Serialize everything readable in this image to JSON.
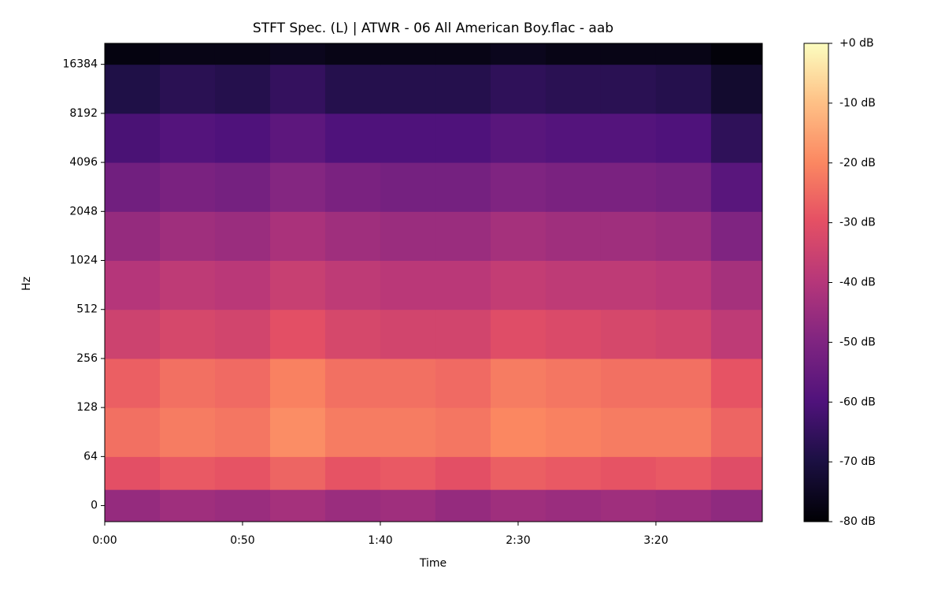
{
  "chart_data": {
    "type": "heatmap",
    "title": "STFT Spec. (L) | ATWR - 06 All American Boy.flac - aab",
    "xlabel": "Time",
    "ylabel": "Hz",
    "yscale": "symlog",
    "linthresh": 64,
    "colormap": "magma",
    "clim": [
      -80,
      0
    ],
    "xlim": [
      0,
      238.6
    ],
    "ylim": [
      -21,
      22050
    ],
    "xticks": [
      {
        "value": 0,
        "label": "0:00"
      },
      {
        "value": 50,
        "label": "0:50"
      },
      {
        "value": 100,
        "label": "1:40"
      },
      {
        "value": 150,
        "label": "2:30"
      },
      {
        "value": 200,
        "label": "3:20"
      }
    ],
    "yticks": [
      0,
      64,
      128,
      256,
      512,
      1024,
      2048,
      4096,
      8192,
      16384
    ],
    "cticks": [
      {
        "value": 0,
        "label": "+0 dB"
      },
      {
        "value": -10,
        "label": "-10 dB"
      },
      {
        "value": -20,
        "label": "-20 dB"
      },
      {
        "value": -30,
        "label": "-30 dB"
      },
      {
        "value": -40,
        "label": "-40 dB"
      },
      {
        "value": -50,
        "label": "-50 dB"
      },
      {
        "value": -60,
        "label": "-60 dB"
      },
      {
        "value": -70,
        "label": "-70 dB"
      },
      {
        "value": -80,
        "label": "-80 dB"
      }
    ],
    "x_edges": [
      0,
      20,
      40,
      60,
      80,
      100,
      120,
      140,
      160,
      180,
      200,
      220,
      238.6
    ],
    "y_edges": [
      -21,
      21,
      64,
      128,
      256,
      512,
      1024,
      2048,
      4096,
      8192,
      16384,
      22050
    ],
    "values": [
      [
        -46,
        -44,
        -45,
        -43,
        -45,
        -44,
        -46,
        -44,
        -45,
        -44,
        -45,
        -47
      ],
      [
        -30,
        -28,
        -29,
        -26,
        -29,
        -28,
        -30,
        -27,
        -28,
        -29,
        -28,
        -31
      ],
      [
        -24,
        -22,
        -23,
        -19,
        -22,
        -22,
        -23,
        -20,
        -21,
        -22,
        -22,
        -26
      ],
      [
        -27,
        -24,
        -25,
        -21,
        -24,
        -24,
        -25,
        -22,
        -23,
        -24,
        -24,
        -29
      ],
      [
        -35,
        -33,
        -34,
        -30,
        -33,
        -34,
        -34,
        -31,
        -32,
        -33,
        -34,
        -38
      ],
      [
        -40,
        -38,
        -39,
        -36,
        -38,
        -39,
        -39,
        -37,
        -38,
        -38,
        -39,
        -43
      ],
      [
        -46,
        -44,
        -45,
        -42,
        -44,
        -45,
        -45,
        -43,
        -44,
        -44,
        -45,
        -50
      ],
      [
        -53,
        -51,
        -52,
        -49,
        -51,
        -52,
        -52,
        -50,
        -51,
        -51,
        -52,
        -58
      ],
      [
        -61,
        -59,
        -60,
        -57,
        -60,
        -60,
        -60,
        -58,
        -59,
        -59,
        -60,
        -66
      ],
      [
        -69,
        -67,
        -68,
        -65,
        -68,
        -68,
        -68,
        -66,
        -67,
        -67,
        -68,
        -73
      ],
      [
        -78,
        -77,
        -77,
        -76,
        -77,
        -77,
        -77,
        -76,
        -77,
        -77,
        -77,
        -79
      ]
    ]
  }
}
